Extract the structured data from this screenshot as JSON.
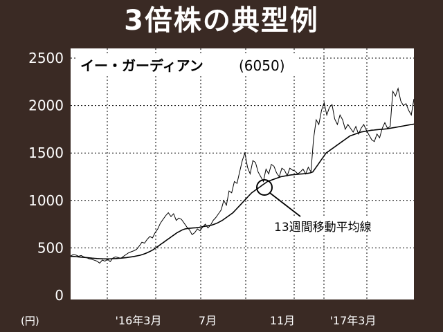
{
  "chart_data": {
    "type": "line",
    "title": "3倍株の典型例",
    "stock_name": "イー・ガーディアン",
    "stock_code": "(6050)",
    "ylabel": "(円)",
    "ylim": [
      0,
      2500
    ],
    "yticks": [
      "2500",
      "2000",
      "1500",
      "1000",
      "500",
      "0"
    ],
    "xtick_labels": [
      "'16年3月",
      "7月",
      "11月",
      "'17年3月"
    ],
    "grid": true,
    "annotation": "13週間移動平均線",
    "series": [
      {
        "kind": "price",
        "values": [
          415,
          430,
          425,
          412,
          420,
          405,
          398,
          385,
          380,
          370,
          360,
          340,
          372,
          360,
          380,
          355,
          392,
          405,
          398,
          390,
          410,
          430,
          448,
          460,
          470,
          485,
          520,
          560,
          550,
          590,
          620,
          605,
          660,
          700,
          760,
          800,
          840,
          870,
          830,
          860,
          790,
          815,
          800,
          760,
          720,
          690,
          640,
          660,
          700,
          680,
          720,
          750,
          710,
          740,
          790,
          820,
          860,
          900,
          1000,
          950,
          1100,
          1080,
          1200,
          1180,
          1300,
          1420,
          1500,
          1350,
          1280,
          1420,
          1400,
          1300,
          1250,
          1200,
          1330,
          1280,
          1380,
          1360,
          1290,
          1250,
          1340,
          1320,
          1260,
          1340,
          1320,
          1310,
          1280,
          1300,
          1330,
          1280,
          1350,
          1300,
          1650,
          1850,
          1800,
          1950,
          2030,
          1900,
          1980,
          2010,
          1860,
          1800,
          1900,
          1850,
          1750,
          1800,
          1760,
          1720,
          1780,
          1700,
          1760,
          1800,
          1740,
          1690,
          1640,
          1620,
          1700,
          1660,
          1760,
          1820,
          1760,
          1780,
          2150,
          2100,
          2180,
          2050,
          2000,
          2020,
          1950,
          1900,
          2070
        ]
      },
      {
        "kind": "moving_average",
        "values": [
          410,
          410,
          408,
          405,
          402,
          400,
          398,
          395,
          392,
          390,
          388,
          386,
          385,
          384,
          384,
          385,
          386,
          388,
          390,
          392,
          395,
          398,
          402,
          406,
          410,
          416,
          422,
          430,
          440,
          452,
          465,
          480,
          500,
          520,
          540,
          560,
          580,
          600,
          620,
          640,
          660,
          675,
          690,
          700,
          705,
          708,
          710,
          712,
          715,
          720,
          725,
          730,
          735,
          740,
          750,
          760,
          775,
          790,
          810,
          830,
          850,
          870,
          900,
          930,
          960,
          990,
          1020,
          1050,
          1080,
          1100,
          1120,
          1140,
          1160,
          1180,
          1200,
          1210,
          1220,
          1230,
          1240,
          1250,
          1255,
          1260,
          1265,
          1270,
          1272,
          1275,
          1278,
          1280,
          1282,
          1285,
          1290,
          1300,
          1340,
          1380,
          1420,
          1460,
          1500,
          1520,
          1540,
          1560,
          1580,
          1600,
          1620,
          1640,
          1660,
          1680,
          1690,
          1700,
          1710,
          1720,
          1725,
          1730,
          1735,
          1740,
          1742,
          1745,
          1748,
          1750,
          1752,
          1755,
          1760,
          1765,
          1770,
          1775,
          1780,
          1785,
          1790,
          1795,
          1800,
          1805
        ]
      }
    ]
  }
}
